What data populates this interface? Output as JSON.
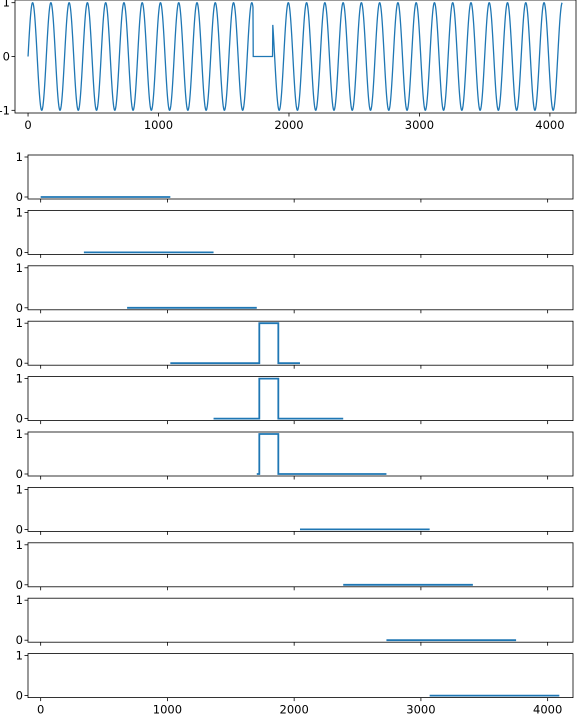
{
  "line_color": "#1f77b4",
  "chart_data": [
    {
      "type": "line",
      "title": "",
      "xlabel": "",
      "ylabel": "",
      "xlim": [
        -100,
        4200
      ],
      "ylim": [
        -1.05,
        1.05
      ],
      "xticks": [
        0,
        1000,
        2000,
        3000,
        4000
      ],
      "xtick_labels": [
        "0",
        "1000",
        "2000",
        "3000",
        "4000"
      ],
      "yticks": [
        -1,
        0,
        1
      ],
      "ytick_labels": [
        "-1",
        "0",
        "1"
      ],
      "signal": {
        "kind": "sine",
        "amplitude": 1,
        "period": 140,
        "x_start": 0,
        "x_end": 4095,
        "zero_segments": [
          [
            1725,
            1875
          ]
        ]
      }
    },
    {
      "type": "line",
      "title": "",
      "xlim": [
        -100,
        4200
      ],
      "ylim": [
        -0.05,
        1.05
      ],
      "xticks": [
        0,
        1000,
        2000,
        3000,
        4000
      ],
      "xtick_labels": [
        "0",
        "1000",
        "2000",
        "3000",
        "4000"
      ],
      "show_xtick_labels": false,
      "yticks": [
        0,
        1
      ],
      "ytick_labels": [
        "0",
        "1"
      ],
      "window": [
        0,
        1023
      ],
      "pulse": null
    },
    {
      "type": "line",
      "xlim": [
        -100,
        4200
      ],
      "ylim": [
        -0.05,
        1.05
      ],
      "xticks": [
        0,
        1000,
        2000,
        3000,
        4000
      ],
      "xtick_labels": [
        "0",
        "1000",
        "2000",
        "3000",
        "4000"
      ],
      "show_xtick_labels": false,
      "yticks": [
        0,
        1
      ],
      "ytick_labels": [
        "0",
        "1"
      ],
      "window": [
        341,
        1364
      ],
      "pulse": null
    },
    {
      "type": "line",
      "xlim": [
        -100,
        4200
      ],
      "ylim": [
        -0.05,
        1.05
      ],
      "xticks": [
        0,
        1000,
        2000,
        3000,
        4000
      ],
      "xtick_labels": [
        "0",
        "1000",
        "2000",
        "3000",
        "4000"
      ],
      "show_xtick_labels": false,
      "yticks": [
        0,
        1
      ],
      "ytick_labels": [
        "0",
        "1"
      ],
      "window": [
        682,
        1705
      ],
      "pulse": null
    },
    {
      "type": "line",
      "xlim": [
        -100,
        4200
      ],
      "ylim": [
        -0.05,
        1.05
      ],
      "xticks": [
        0,
        1000,
        2000,
        3000,
        4000
      ],
      "xtick_labels": [
        "0",
        "1000",
        "2000",
        "3000",
        "4000"
      ],
      "show_xtick_labels": false,
      "yticks": [
        0,
        1
      ],
      "ytick_labels": [
        "0",
        "1"
      ],
      "window": [
        1023,
        2046
      ],
      "pulse": [
        1725,
        1875
      ]
    },
    {
      "type": "line",
      "xlim": [
        -100,
        4200
      ],
      "ylim": [
        -0.05,
        1.05
      ],
      "xticks": [
        0,
        1000,
        2000,
        3000,
        4000
      ],
      "xtick_labels": [
        "0",
        "1000",
        "2000",
        "3000",
        "4000"
      ],
      "show_xtick_labels": false,
      "yticks": [
        0,
        1
      ],
      "ytick_labels": [
        "0",
        "1"
      ],
      "window": [
        1364,
        2387
      ],
      "pulse": [
        1725,
        1875
      ]
    },
    {
      "type": "line",
      "xlim": [
        -100,
        4200
      ],
      "ylim": [
        -0.05,
        1.05
      ],
      "xticks": [
        0,
        1000,
        2000,
        3000,
        4000
      ],
      "xtick_labels": [
        "0",
        "1000",
        "2000",
        "3000",
        "4000"
      ],
      "show_xtick_labels": false,
      "yticks": [
        0,
        1
      ],
      "ytick_labels": [
        "0",
        "1"
      ],
      "window": [
        1705,
        2728
      ],
      "pulse": [
        1725,
        1875
      ]
    },
    {
      "type": "line",
      "xlim": [
        -100,
        4200
      ],
      "ylim": [
        -0.05,
        1.05
      ],
      "xticks": [
        0,
        1000,
        2000,
        3000,
        4000
      ],
      "xtick_labels": [
        "0",
        "1000",
        "2000",
        "3000",
        "4000"
      ],
      "show_xtick_labels": false,
      "yticks": [
        0,
        1
      ],
      "ytick_labels": [
        "0",
        "1"
      ],
      "window": [
        2046,
        3069
      ],
      "pulse": null
    },
    {
      "type": "line",
      "xlim": [
        -100,
        4200
      ],
      "ylim": [
        -0.05,
        1.05
      ],
      "xticks": [
        0,
        1000,
        2000,
        3000,
        4000
      ],
      "xtick_labels": [
        "0",
        "1000",
        "2000",
        "3000",
        "4000"
      ],
      "show_xtick_labels": false,
      "yticks": [
        0,
        1
      ],
      "ytick_labels": [
        "0",
        "1"
      ],
      "window": [
        2387,
        3410
      ],
      "pulse": null
    },
    {
      "type": "line",
      "xlim": [
        -100,
        4200
      ],
      "ylim": [
        -0.05,
        1.05
      ],
      "xticks": [
        0,
        1000,
        2000,
        3000,
        4000
      ],
      "xtick_labels": [
        "0",
        "1000",
        "2000",
        "3000",
        "4000"
      ],
      "show_xtick_labels": false,
      "yticks": [
        0,
        1
      ],
      "ytick_labels": [
        "0",
        "1"
      ],
      "window": [
        2728,
        3751
      ],
      "pulse": null
    },
    {
      "type": "line",
      "xlim": [
        -100,
        4200
      ],
      "ylim": [
        -0.05,
        1.05
      ],
      "xticks": [
        0,
        1000,
        2000,
        3000,
        4000
      ],
      "xtick_labels": [
        "0",
        "1000",
        "2000",
        "3000",
        "4000"
      ],
      "show_xtick_labels": true,
      "yticks": [
        0,
        1
      ],
      "ytick_labels": [
        "0",
        "1"
      ],
      "window": [
        3069,
        4092
      ],
      "pulse": null
    }
  ]
}
